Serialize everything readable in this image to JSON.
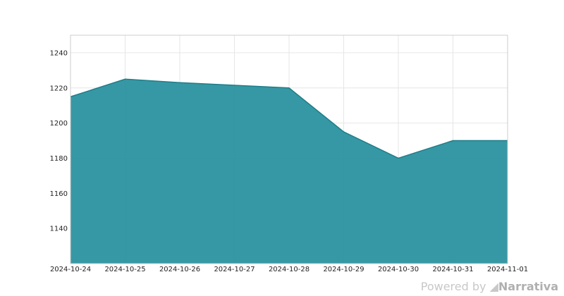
{
  "chart_data": {
    "type": "area",
    "x": [
      "2024-10-24",
      "2024-10-25",
      "2024-10-26",
      "2024-10-27",
      "2024-10-28",
      "2024-10-29",
      "2024-10-30",
      "2024-10-31",
      "2024-11-01"
    ],
    "values": [
      1215,
      1225,
      1223,
      1221.5,
      1220,
      1195,
      1180,
      1190,
      1190
    ],
    "x_tick_labels": [
      "2024-10-24",
      "2024-10-25",
      "2024-10-26",
      "2024-10-27",
      "2024-10-28",
      "2024-10-29",
      "2024-10-30",
      "2024-10-31",
      "2024-11-01"
    ],
    "y_ticks": [
      1140,
      1160,
      1180,
      1200,
      1220,
      1240
    ],
    "ylim": [
      1120,
      1250
    ],
    "title": "",
    "xlabel": "",
    "ylabel": "",
    "grid": true,
    "legend": "none",
    "fill_color": "#2b929f",
    "line_color": "#1f7d89"
  },
  "watermark": {
    "powered_by": "Powered by",
    "brand": "Narrativa"
  }
}
